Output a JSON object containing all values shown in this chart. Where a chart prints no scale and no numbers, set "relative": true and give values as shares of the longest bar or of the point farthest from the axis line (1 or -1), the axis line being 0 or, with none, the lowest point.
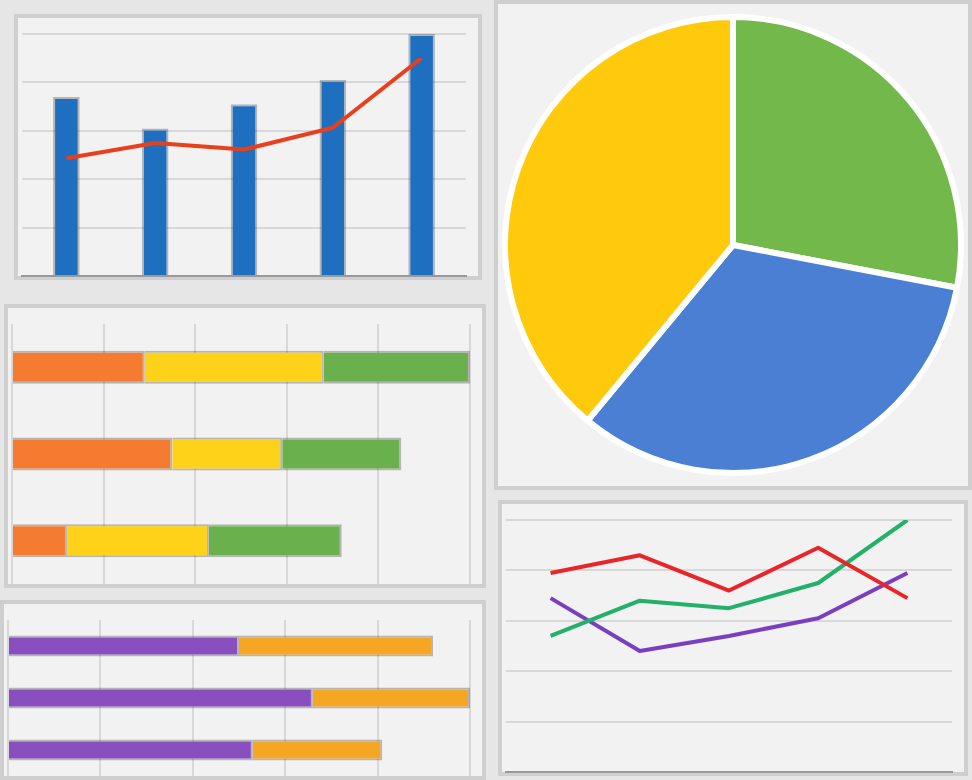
{
  "chart_data": [
    {
      "type": "bar",
      "relative": true,
      "grid": "y",
      "categories": [
        null,
        null,
        null,
        null,
        null
      ],
      "series": [
        {
          "color": "#1f6fc0",
          "values": [
            0.74,
            0.61,
            0.71,
            0.81,
            1
          ]
        }
      ]
    },
    {
      "type": "line",
      "relative": true,
      "marker": "none",
      "categories": [
        null,
        null,
        null,
        null,
        null
      ],
      "series": [
        {
          "color": "#e8401c",
          "values": [
            0.54,
            0.61,
            0.58,
            0.68,
            1
          ]
        }
      ]
    },
    {
      "type": "pie",
      "categories": [
        null,
        null,
        null
      ],
      "values": [
        28,
        33,
        39
      ],
      "colors": [
        "#72b84a",
        "#4a7fd4",
        "#ffc90c"
      ]
    },
    {
      "type": "bar",
      "relative": true,
      "stacked": true,
      "orientation": "horizontal",
      "grid": "x",
      "categories": [
        null,
        null,
        null
      ],
      "series": [
        {
          "color": "#f47b30",
          "values": [
            0.29,
            0.35,
            0.12
          ]
        },
        {
          "color": "#ffd21a",
          "values": [
            0.39,
            0.24,
            0.31
          ]
        },
        {
          "color": "#6ab04c",
          "values": [
            0.32,
            0.26,
            0.29
          ]
        }
      ]
    },
    {
      "type": "bar",
      "relative": true,
      "stacked": true,
      "orientation": "horizontal",
      "grid": "x",
      "categories": [
        null,
        null,
        null
      ],
      "series": [
        {
          "color": "#8a4fbf",
          "values": [
            0.5,
            0.66,
            0.53
          ]
        },
        {
          "color": "#f5a623",
          "values": [
            0.42,
            0.34,
            0.28
          ]
        }
      ]
    },
    {
      "type": "line",
      "relative": true,
      "grid": "y",
      "marker": "none",
      "categories": [
        null,
        null,
        null,
        null,
        null
      ],
      "series": [
        {
          "color": "#e8262a",
          "values": [
            0.79,
            0.86,
            0.72,
            0.89,
            0.69
          ]
        },
        {
          "color": "#23b06a",
          "values": [
            0.54,
            0.68,
            0.65,
            0.75,
            1
          ]
        },
        {
          "color": "#7a3fbf",
          "values": [
            0.69,
            0.48,
            0.54,
            0.61,
            0.79
          ]
        }
      ]
    }
  ]
}
